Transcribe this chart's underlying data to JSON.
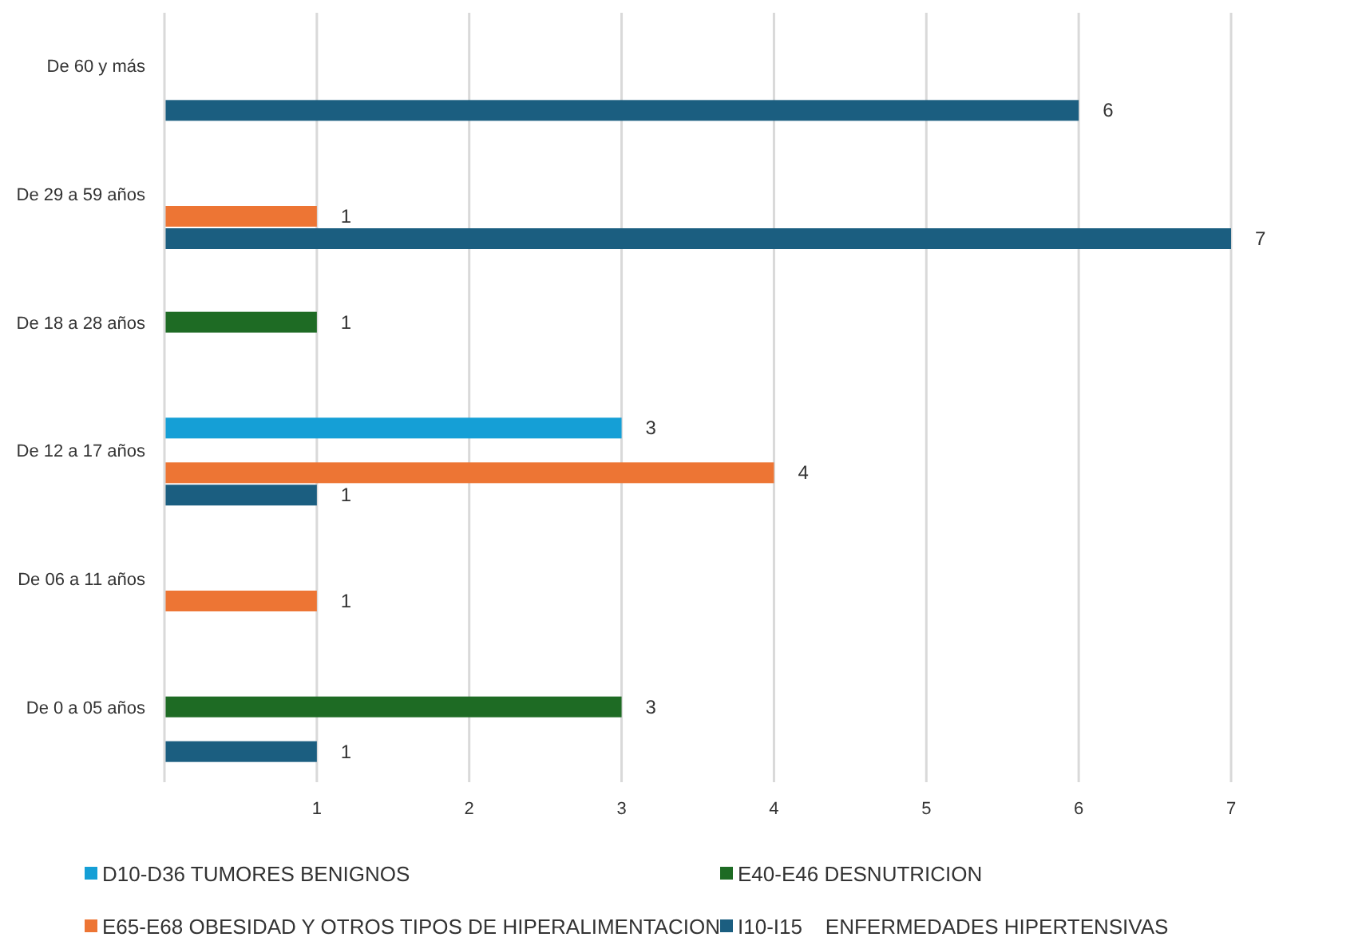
{
  "chart_data": {
    "type": "bar",
    "orientation": "horizontal",
    "categories": [
      "De 60 y más",
      "De 29 a 59 años",
      "De 18 a 28 años",
      "De 12 a 17 años",
      "De 06 a 11 años",
      "De 0 a 05 años"
    ],
    "series": [
      {
        "name": "D10-D36 TUMORES BENIGNOS",
        "color": "#159fd6",
        "values": [
          null,
          null,
          null,
          3,
          null,
          null
        ]
      },
      {
        "name": "E40-E46 DESNUTRICION",
        "color": "#1e6b24",
        "values": [
          null,
          null,
          1,
          null,
          null,
          3
        ]
      },
      {
        "name": "E65-E68 OBESIDAD Y OTROS TIPOS DE HIPERALIMENTACION",
        "color": "#ed7534",
        "values": [
          null,
          1,
          null,
          4,
          1,
          null
        ]
      },
      {
        "name": "I10-I15    ENFERMEDADES HIPERTENSIVAS",
        "color": "#1b5e80",
        "values": [
          6,
          7,
          null,
          1,
          null,
          1
        ]
      }
    ],
    "xlim": [
      0,
      7
    ],
    "xticks": [
      1,
      2,
      3,
      4,
      5,
      6,
      7
    ],
    "grid": "x",
    "legend": "bottom",
    "data_labels": true
  }
}
